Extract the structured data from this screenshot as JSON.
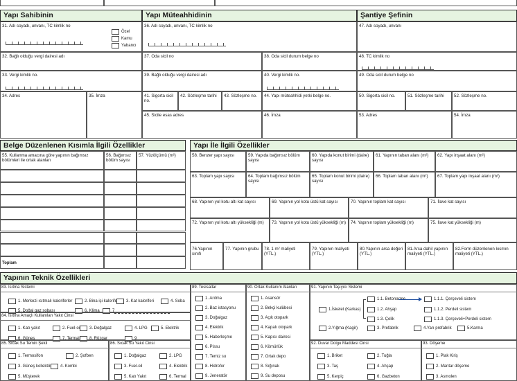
{
  "header_row": [
    "Yapı Sahibinin",
    "Yapı Müteahhidinin",
    "Şantiye Şefinin"
  ],
  "owner_types": [
    "Özel",
    "Kamu",
    "Yabancı"
  ],
  "fields": [
    "31. Adı soyadı, unvanı, TC kimlik no",
    "32. Bağlı olduğu vergi dairesi adı",
    "33. Vergi kimlik no.",
    "34. Adres",
    "35. İmza",
    "36. Adı soyadı, unvanı, TC kimlik no",
    "37. Oda sicil no",
    "38. Oda sicil durum belge no",
    "39. Bağlı olduğu vergi dairesi adı",
    "40. Vergi kimlik no.",
    "41. Sigorta sicil no.",
    "42. Sözleşme tarihi",
    "43. Sözleşme no.",
    "44. Yapı müteahhidi yetki belge no.",
    "45. Sicile esas adres",
    "46. İmza",
    "47. Adı soyadı, unvanı",
    "48. TC kimlik no",
    "49. Oda sicil durum belge no",
    "50. Sigorta sicil no.",
    "51. Sözleşme tarihi",
    "52. Sözleşme no.",
    "53. Adres",
    "54. İmza",
    "55. Kullanma amacına göre yapının bağımsız bölümleri ile ortak alanları",
    "56. Bağımsız bölüm sayısı",
    "57. Yüzölçümü (m²)",
    "58. Benzer yapı sayısı",
    "59. Yapıda bağımsız bölüm sayısı",
    "60. Yapıda konut birimi (daire) sayısı",
    "61. Yapının taban alanı (m²)",
    "62. Yapı inşaat alanı (m²)",
    "63. Toplam yapı sayısı",
    "64. Toplam bağımsız bölüm sayısı",
    "65. Toplam konut birimi (daire) sayısı",
    "66. Toplam taban alanı (m²)",
    "67. Toplam yapı inşaat alanı (m²)",
    "68. Yapının yol kotu altı kat sayısı",
    "69. Yapının yol kotu üstü kat sayısı",
    "70. Yapının toplam kat sayısı",
    "71. İlave kat sayısı",
    "72. Yapının yol kotu altı yüksekliği (m)",
    "73. Yapının yol kotu üstü yüksekliği (m)",
    "74. Yapının toplam yüksekliği (m)",
    "75. İlave kat yüksekliği (m)",
    "76.Yapının sınıfı",
    "77. Yapının grubu",
    "78. 1 m² maliyeti (YTL.)",
    "79. Yapının maliyeti (YTL.)",
    "80.Yapının arsa değeri (YTL.)",
    "81.Arsa dahil yapının maliyeti (YTL.)",
    "82.Form düzenlenen kısmın maliyeti (YTL.)"
  ],
  "belge": {
    "title": "Belge Düzenlenen Kısımla İlgili Özellikler",
    "total": "Toplam"
  },
  "yapi_title": "Yapı İle İlgili Özellikler",
  "teknik": {
    "title": "Yapının Teknik Özellikleri",
    "groups": [
      {
        "title": "83. Isıtma Sistemi",
        "options": [
          "1. Merkezi ısıtmalı kaloriferler",
          "2. Bina içi kaloriferler",
          "3. Kat kaloriferi",
          "4. Soba",
          "5. Doğal gaz sobası",
          "6. Klima",
          "7"
        ]
      },
      {
        "title": "84. Isıtma Amaçlı Kullanılan Yakıt Cinsi",
        "options": [
          "1. Katı yakıt",
          "2. Fuel-oil",
          "3. Doğalgaz",
          "4. LPG",
          "5. Elektrik",
          "6. Güneş",
          "7. Termal",
          "8. Rüzgar",
          "9"
        ]
      },
      {
        "title": "85. Sıcak Su Temin Şekli",
        "options": [
          "1. Termosifon",
          "2. Şofben",
          "3. Güneş kollektörü",
          "4. Kombi",
          "5. Müşterek"
        ]
      },
      {
        "title": "86. Sıcak Su Yakıt Cinsi",
        "options": [
          "1. Doğalgaz",
          "2. LPG",
          "3. Fuel-oil",
          "4. Elektrik",
          "5. Katı Yakıt",
          "6. Termal"
        ]
      },
      {
        "title": "89. Tesisatlar",
        "options": [
          "1. Arıtma",
          "2. Baz istasyonu",
          "3. Doğalgaz",
          "4. Elektrik",
          "5. Haberleşme",
          "6. Pissu",
          "7. Temiz su",
          "8. Hidrofor",
          "9. Jeneratör"
        ]
      },
      {
        "title": "90. Ortak Kullanım Alanları",
        "options": [
          "1. Asansör",
          "2. Bekçi kulübesi",
          "3. Açık otopark",
          "4. Kapalı otopark",
          "5. Kapıcı dairesi",
          "6. Kömürlük",
          "7. Ortak depo",
          "8. Sığınak",
          "9. Su deposu"
        ]
      },
      {
        "title": "91. Yapının Taşıyıcı Sistemi",
        "options": [
          "1.İskelet (Karkas)",
          "1.1. Betonarme",
          "1.2. Ahşap",
          "1.3. Çelik",
          "1.1.1. Çerçeveli sistem",
          "1.1.2. Perdeli sistem",
          "1.1.3. Çerçeveli+Perdeli sistem",
          "2.Yığma (Kagir)",
          "3. Prefabrik",
          "4.Yarı prefabrik",
          "5.Karma"
        ]
      },
      {
        "title": "92. Duvar Dolgu Maddesi Cinsi",
        "options": [
          "1. Briket",
          "2. Tuğla",
          "3. Taş",
          "4. Ahşap",
          "5. Kerpiç",
          "6. Gazbeton"
        ]
      },
      {
        "title": "93. Döşeme",
        "options": [
          "1. Plak Kiriş",
          "2. Mantar döşeme",
          "3. Asmolen"
        ]
      }
    ]
  }
}
